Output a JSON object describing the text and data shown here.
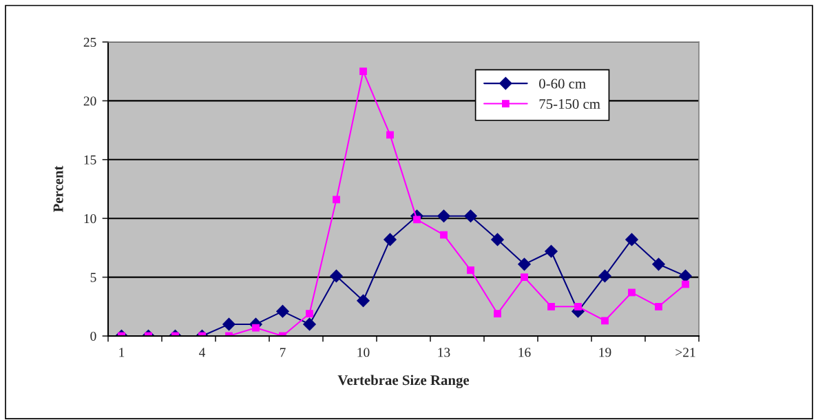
{
  "chart_data": {
    "type": "line",
    "xlabel": "Vertebrae Size Range",
    "ylabel": "Percent",
    "categories": [
      "1",
      null,
      null,
      "4",
      null,
      null,
      "7",
      null,
      null,
      "10",
      null,
      null,
      "13",
      null,
      null,
      "16",
      null,
      null,
      "19",
      null,
      null,
      ">21"
    ],
    "series": [
      {
        "name": "0-60 cm",
        "color": "#000080",
        "marker": "diamond",
        "values": [
          0,
          0,
          0,
          0,
          1.0,
          1.0,
          2.1,
          1.0,
          5.1,
          3.0,
          8.2,
          10.2,
          10.2,
          10.2,
          8.2,
          6.1,
          7.2,
          2.1,
          5.1,
          8.2,
          6.1,
          5.1
        ]
      },
      {
        "name": "75-150 cm",
        "color": "#ff00ff",
        "marker": "square",
        "values": [
          0,
          0,
          0,
          0,
          0,
          0.7,
          0,
          1.9,
          11.6,
          22.5,
          17.1,
          9.9,
          8.6,
          5.6,
          1.9,
          5.0,
          2.5,
          2.5,
          1.3,
          3.7,
          2.5,
          4.4
        ]
      }
    ],
    "ylim": [
      0,
      25
    ],
    "yticks": [
      0,
      5,
      10,
      15,
      20,
      25
    ],
    "grid": "y",
    "legend": "top right"
  }
}
